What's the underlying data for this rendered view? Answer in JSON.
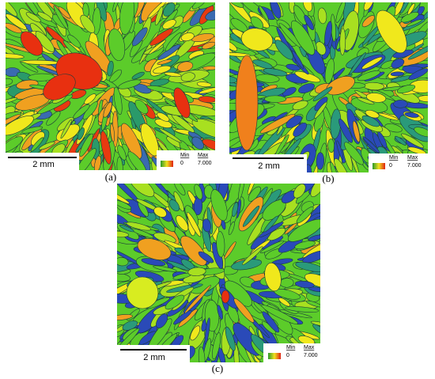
{
  "panels": [
    {
      "label": "(a)",
      "scale_bar": "2 mm",
      "legend": {
        "min_label": "Min",
        "max_label": "Max",
        "min": "0",
        "max": "7.000"
      }
    },
    {
      "label": "(b)",
      "scale_bar": "2 mm",
      "legend": {
        "min_label": "Min",
        "max_label": "Max",
        "min": "0",
        "max": "7.000"
      }
    },
    {
      "label": "(c)",
      "scale_bar": "2 mm",
      "legend": {
        "min_label": "Min",
        "max_label": "Max",
        "min": "0",
        "max": "7.000"
      }
    }
  ]
}
